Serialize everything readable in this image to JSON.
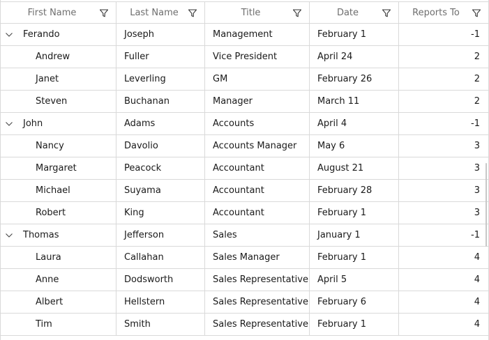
{
  "columns": [
    {
      "label": "First Name"
    },
    {
      "label": "Last Name"
    },
    {
      "label": "Title"
    },
    {
      "label": "Date"
    },
    {
      "label": "Reports To"
    }
  ],
  "rows": [
    {
      "level": 0,
      "expanded": true,
      "first": "Ferando",
      "last": "Joseph",
      "title": "Management",
      "date": "February 1",
      "reports_to": "-1"
    },
    {
      "level": 1,
      "first": "Andrew",
      "last": "Fuller",
      "title": "Vice President",
      "date": "April 24",
      "reports_to": "2"
    },
    {
      "level": 1,
      "first": "Janet",
      "last": "Leverling",
      "title": "GM",
      "date": "February 26",
      "reports_to": "2"
    },
    {
      "level": 1,
      "first": "Steven",
      "last": "Buchanan",
      "title": "Manager",
      "date": "March 11",
      "reports_to": "2"
    },
    {
      "level": 0,
      "expanded": true,
      "first": "John",
      "last": "Adams",
      "title": "Accounts",
      "date": "April 4",
      "reports_to": "-1"
    },
    {
      "level": 1,
      "first": "Nancy",
      "last": "Davolio",
      "title": "Accounts Manager",
      "date": "May 6",
      "reports_to": "3"
    },
    {
      "level": 1,
      "first": "Margaret",
      "last": "Peacock",
      "title": "Accountant",
      "date": "August 21",
      "reports_to": "3"
    },
    {
      "level": 1,
      "first": "Michael",
      "last": "Suyama",
      "title": "Accountant",
      "date": "February 28",
      "reports_to": "3"
    },
    {
      "level": 1,
      "first": "Robert",
      "last": "King",
      "title": "Accountant",
      "date": "February 1",
      "reports_to": "3"
    },
    {
      "level": 0,
      "expanded": true,
      "first": "Thomas",
      "last": "Jefferson",
      "title": "Sales",
      "date": "January 1",
      "reports_to": "-1"
    },
    {
      "level": 1,
      "first": "Laura",
      "last": "Callahan",
      "title": "Sales Manager",
      "date": "February 1",
      "reports_to": "4"
    },
    {
      "level": 1,
      "first": "Anne",
      "last": "Dodsworth",
      "title": "Sales Representative",
      "date": "April 5",
      "reports_to": "4"
    },
    {
      "level": 1,
      "first": "Albert",
      "last": "Hellstern",
      "title": "Sales Representative",
      "date": "February 6",
      "reports_to": "4"
    },
    {
      "level": 1,
      "first": "Tim",
      "last": "Smith",
      "title": "Sales Representative",
      "date": "February 1",
      "reports_to": "4"
    }
  ],
  "icons": {
    "filter": "filter-funnel-icon",
    "expand": "chevron-down-icon"
  },
  "colors": {
    "border": "#d9d9d9",
    "header_text": "#6e6e6e",
    "text": "#1a1a1a"
  }
}
